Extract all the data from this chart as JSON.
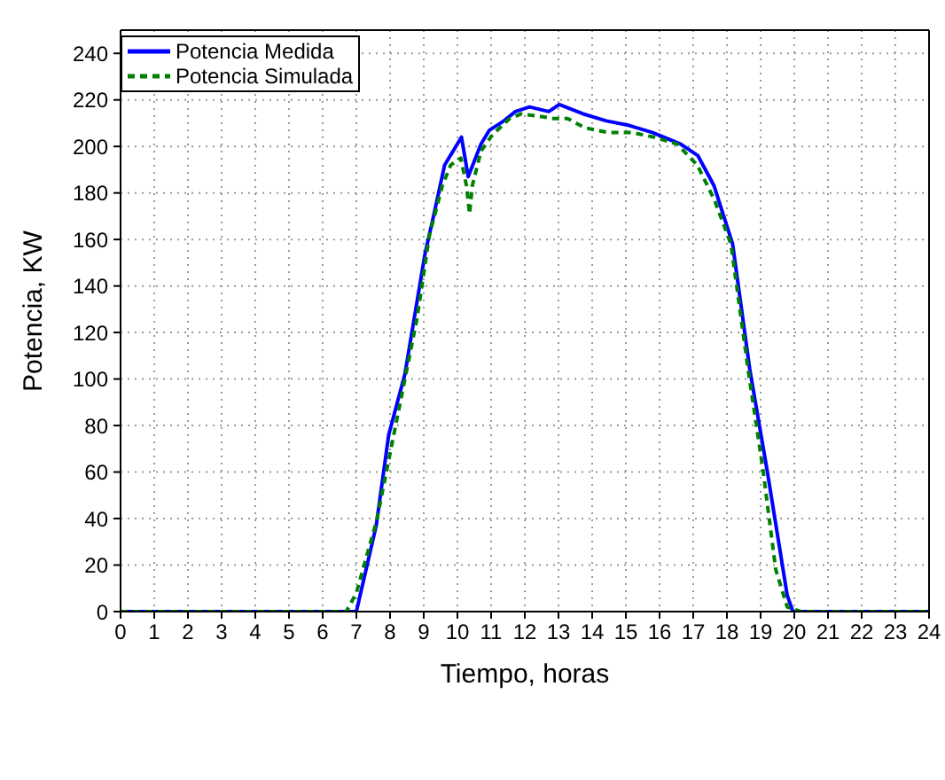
{
  "chart_data": {
    "type": "line",
    "xlabel": "Tiempo, horas",
    "ylabel": "Potencia, KW",
    "xlim": [
      0,
      24
    ],
    "xticks": [
      0,
      1,
      2,
      3,
      4,
      5,
      6,
      7,
      8,
      9,
      10,
      11,
      12,
      13,
      14,
      15,
      16,
      17,
      18,
      19,
      20,
      21,
      22,
      23,
      24
    ],
    "ylim": [
      0,
      250
    ],
    "yticks": [
      0,
      20,
      40,
      60,
      80,
      100,
      120,
      140,
      160,
      180,
      200,
      220,
      240
    ],
    "grid": true,
    "legend": "top left",
    "marker": "none",
    "series": [
      {
        "name": "Potencia Medida",
        "color": "#0000ff",
        "line_style": "solid",
        "x": [
          0,
          7.0,
          7.59,
          7.96,
          8.44,
          9.04,
          9.26,
          9.62,
          10.12,
          10.32,
          10.7,
          10.95,
          11.38,
          11.72,
          12.14,
          12.71,
          13.02,
          13.73,
          14.42,
          15.1,
          15.78,
          16.63,
          17.14,
          17.62,
          18.17,
          18.68,
          19.19,
          19.79,
          19.96,
          24
        ],
        "values": [
          0,
          0,
          37,
          76,
          102,
          154,
          168,
          192,
          204,
          187,
          201,
          207,
          211,
          215,
          217,
          215,
          218,
          214,
          211,
          209,
          206,
          201,
          196,
          183,
          158,
          104,
          61,
          7,
          0,
          0
        ]
      },
      {
        "name": "Potencia Simulada",
        "color": "#008000",
        "line_style": "dashed",
        "x": [
          0,
          6.7,
          7.0,
          7.6,
          8.8,
          9.17,
          9.55,
          9.8,
          10.1,
          10.27,
          10.36,
          10.44,
          10.7,
          11.04,
          11.55,
          11.9,
          12.41,
          12.84,
          13.27,
          13.79,
          14.47,
          15.16,
          15.84,
          16.52,
          17.12,
          17.63,
          18.12,
          18.63,
          19.07,
          19.45,
          19.79,
          20.2,
          24
        ],
        "values": [
          0,
          0,
          8,
          39,
          126,
          162,
          183,
          192,
          195,
          183,
          171,
          183,
          198,
          205,
          212,
          214,
          213,
          212,
          212,
          208,
          206,
          206,
          204,
          201,
          192,
          177,
          158,
          104,
          61,
          18,
          2,
          0,
          0
        ]
      }
    ]
  }
}
